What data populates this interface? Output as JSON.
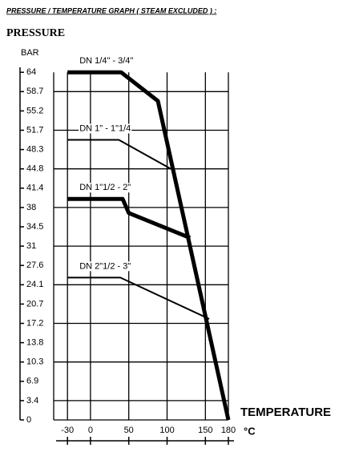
{
  "chart_data": {
    "type": "line",
    "title": "PRESSURE / TEMPERATURE GRAPH ( STEAM EXCLUDED ) :",
    "y_label": "PRESSURE",
    "y_unit": "BAR",
    "x_label": "TEMPERATURE",
    "x_unit": "°C",
    "xlim": [
      -48,
      180
    ],
    "xticks": [
      -30,
      0,
      50,
      100,
      150,
      180
    ],
    "ylim": [
      0,
      64
    ],
    "yticks": [
      0,
      3.4,
      6.9,
      10.3,
      13.8,
      17.2,
      20.7,
      24.1,
      27.6,
      31,
      34.5,
      38,
      41.4,
      44.8,
      48.3,
      51.7,
      55.2,
      58.7,
      64
    ],
    "grid": true,
    "series": [
      {
        "name": "DN 1/4\" - 3/4\"",
        "color": "#000000",
        "width": 5,
        "x": [
          -30,
          40,
          88,
          180
        ],
        "values": [
          64,
          64,
          57,
          0
        ]
      },
      {
        "name": "DN 1\" - 1\"1/4",
        "color": "#000000",
        "width": 2,
        "x": [
          -30,
          37,
          105
        ],
        "values": [
          50,
          50,
          44.8
        ]
      },
      {
        "name": "DN 1\"1/2 - 2\"",
        "color": "#000000",
        "width": 5,
        "x": [
          -30,
          42,
          50,
          130
        ],
        "values": [
          39.5,
          39.5,
          37,
          32.5
        ]
      },
      {
        "name": "DN 2\"1/2 - 3\"",
        "color": "#000000",
        "width": 2,
        "x": [
          -30,
          39,
          155
        ],
        "values": [
          25.4,
          25.4,
          18
        ]
      }
    ]
  }
}
